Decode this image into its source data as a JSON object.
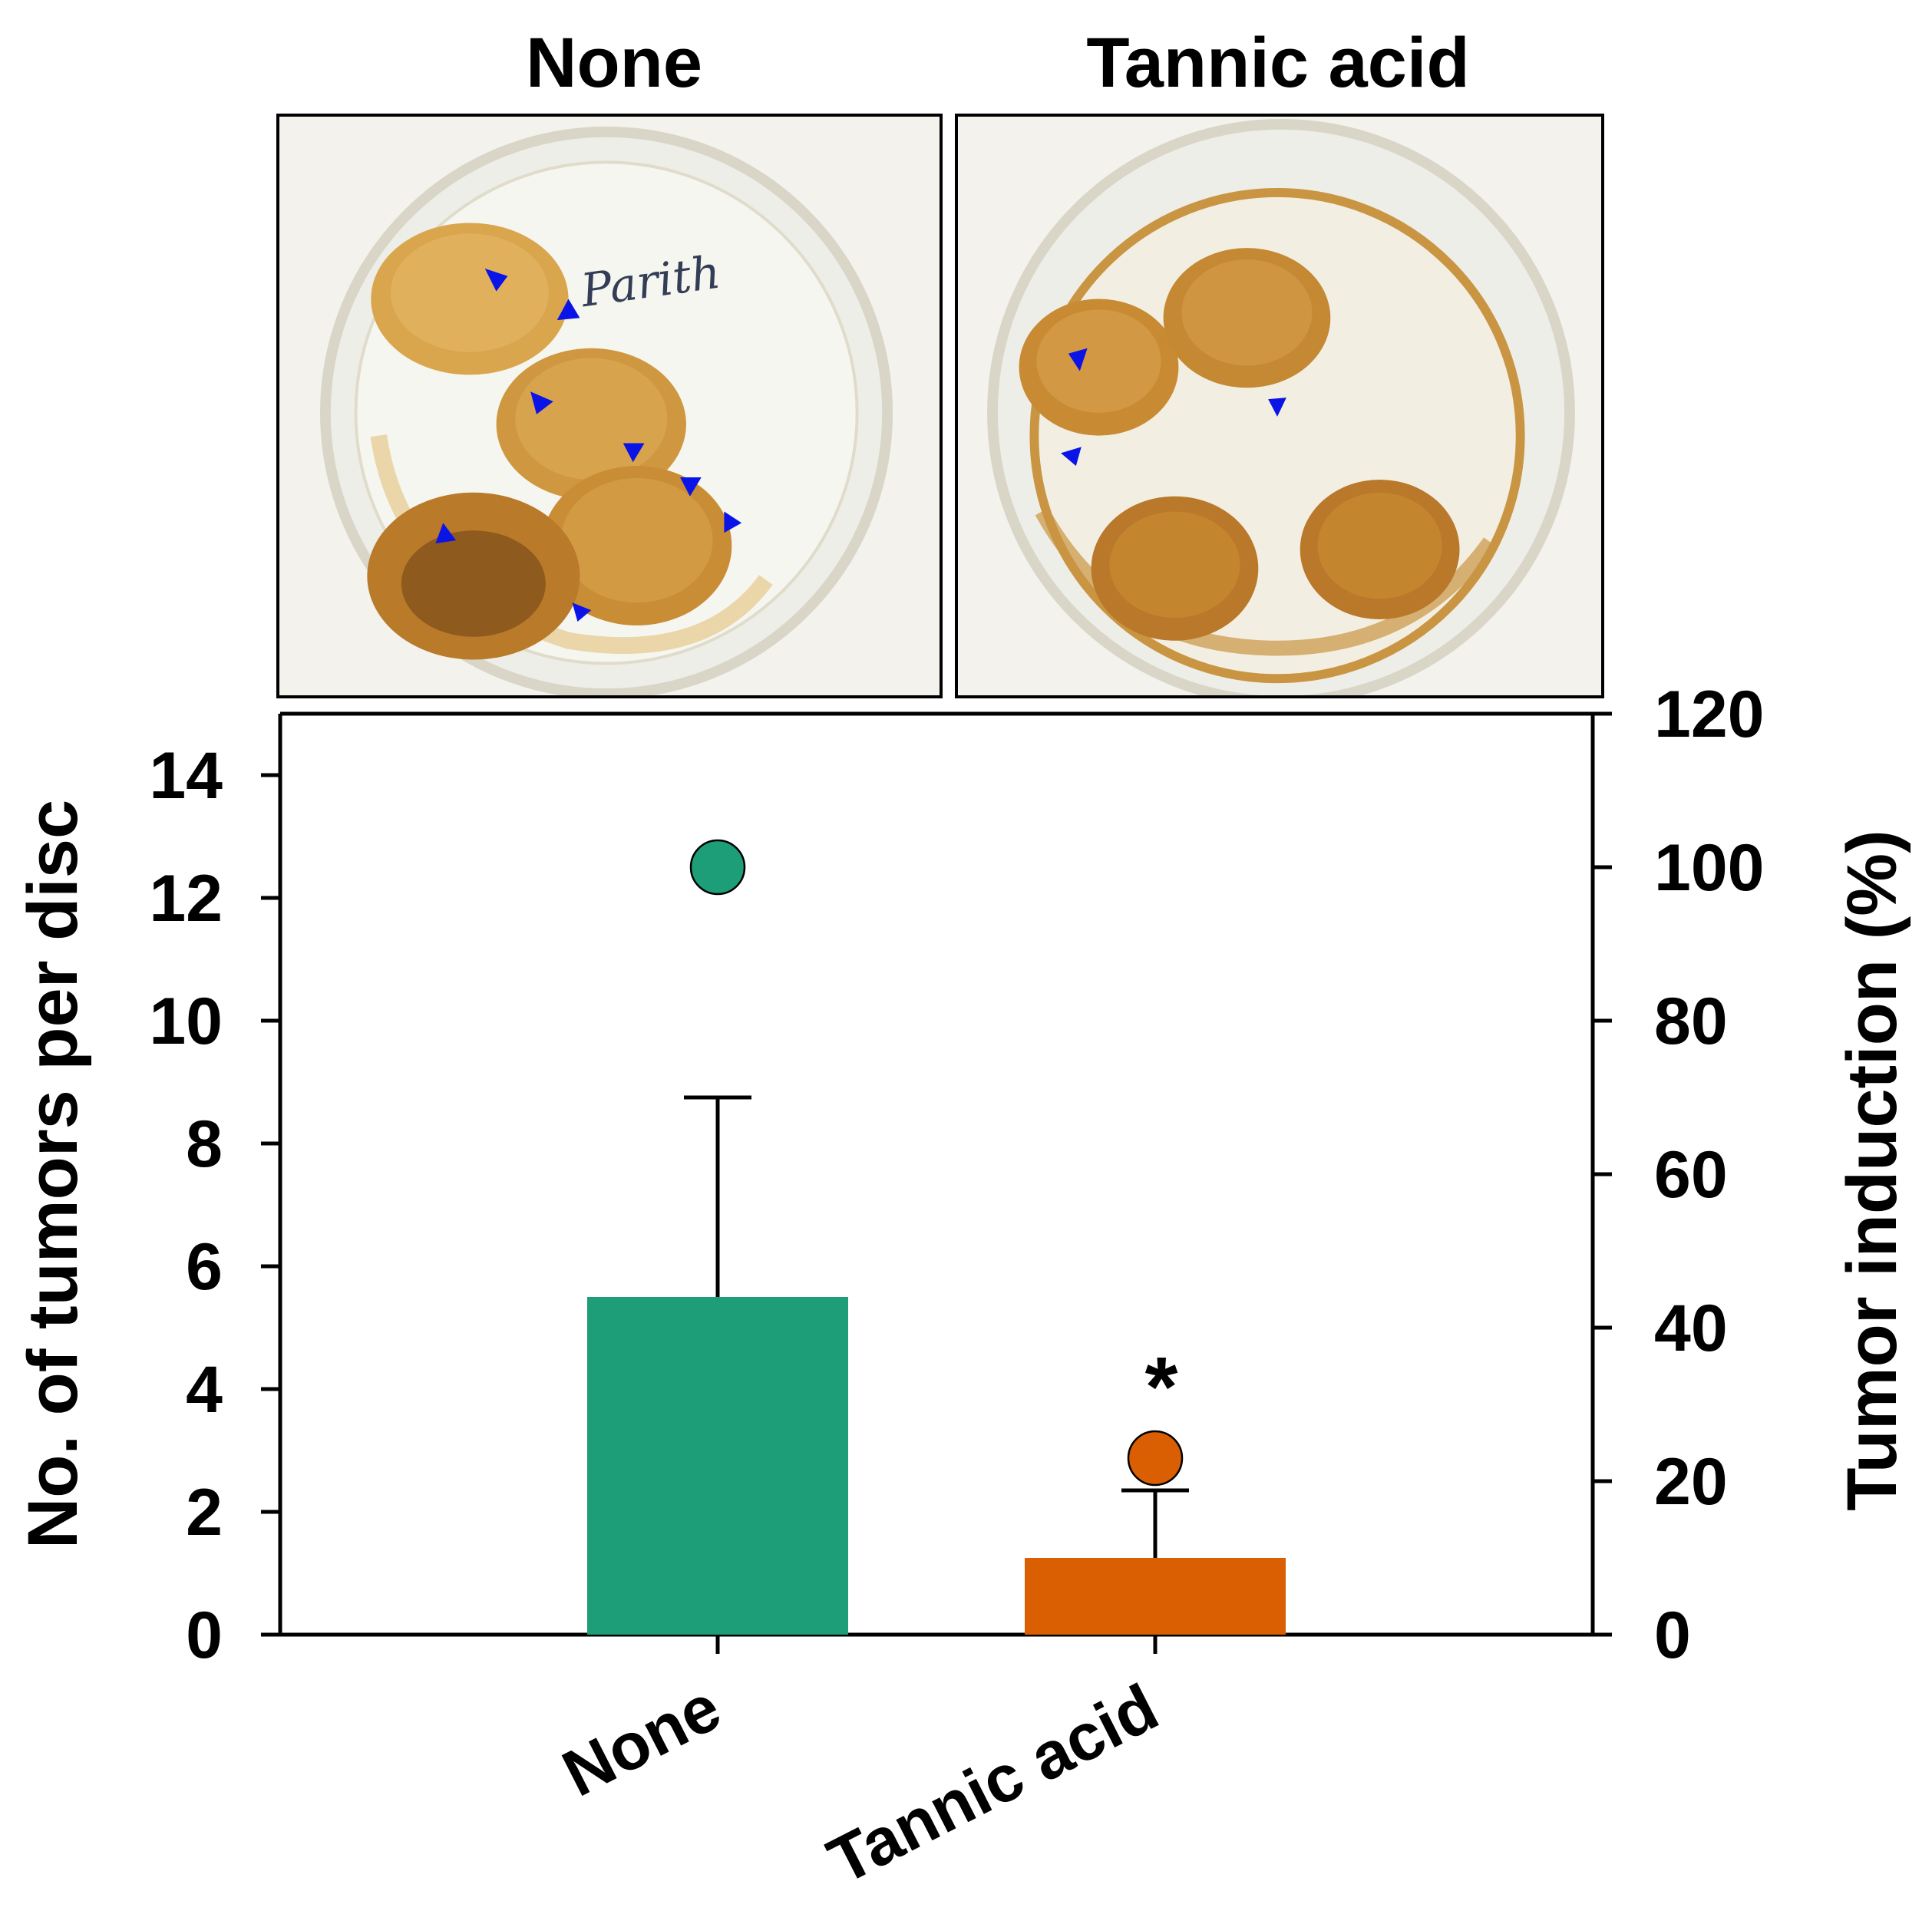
{
  "photos": {
    "left_title": "None",
    "right_title": "Tannic acid",
    "marker_color": "#0a14e6"
  },
  "chart_data": {
    "type": "bar",
    "categories": [
      "None",
      "Tannic acid"
    ],
    "bars": {
      "axis": "left",
      "values": [
        5.5,
        1.25
      ],
      "errors_upper": [
        3.25,
        1.1
      ],
      "colors": [
        "#1e9e78",
        "#d95f02"
      ]
    },
    "points": {
      "axis": "right",
      "values": [
        100,
        23
      ],
      "colors": [
        "#1e9e78",
        "#d95f02"
      ]
    },
    "significance": [
      "",
      "*"
    ],
    "ylabel": "No. of tumors per disc",
    "ylim": [
      0,
      15
    ],
    "yticks": [
      0,
      2,
      4,
      6,
      8,
      10,
      12,
      14
    ],
    "y2label": "Tumor induction (%)",
    "y2lim": [
      0,
      120
    ],
    "y2ticks": [
      0,
      20,
      40,
      60,
      80,
      100,
      120
    ],
    "grid": false,
    "legend": "none"
  }
}
